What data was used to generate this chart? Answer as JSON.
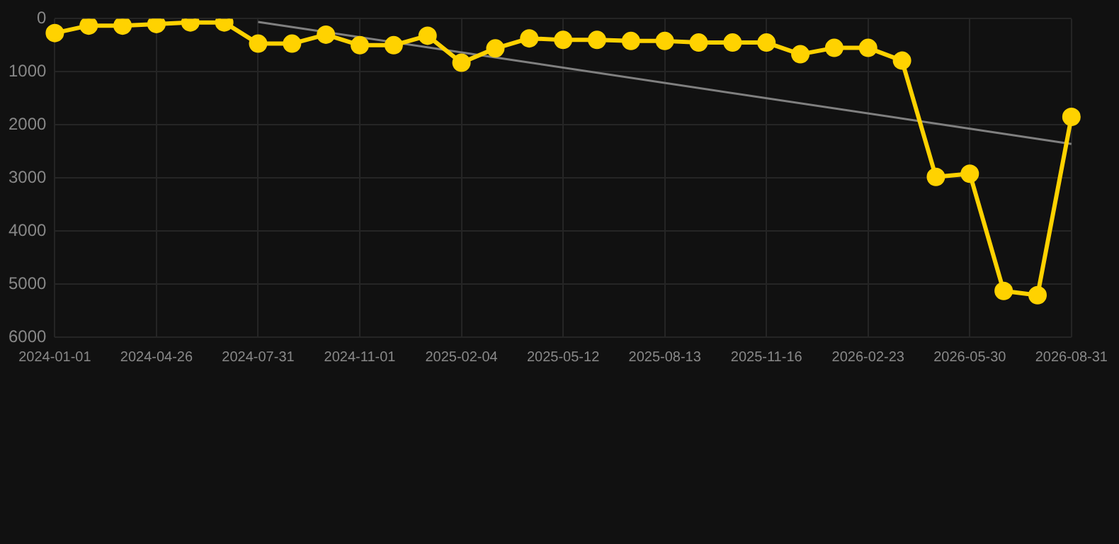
{
  "chart_data": {
    "type": "line",
    "categories": [
      "2024-01-01",
      null,
      null,
      "2024-04-26",
      null,
      null,
      "2024-07-31",
      null,
      null,
      "2024-11-01",
      null,
      null,
      "2025-02-04",
      null,
      null,
      "2025-05-12",
      null,
      null,
      "2025-08-13",
      null,
      null,
      "2025-11-16",
      null,
      null,
      "2026-02-23",
      null,
      null,
      "2026-05-30",
      null,
      null,
      "2026-08-31"
    ],
    "series": [
      {
        "color": "#ffd200",
        "marker": "circle",
        "values": [
          270,
          130,
          130,
          100,
          70,
          70,
          470,
          470,
          300,
          500,
          500,
          320,
          830,
          560,
          370,
          400,
          400,
          420,
          420,
          450,
          450,
          450,
          670,
          550,
          550,
          790,
          2980,
          2920,
          5130,
          5210,
          1850
        ]
      },
      {
        "color": "#808080",
        "marker": "none",
        "values": [
          null,
          null,
          null,
          null,
          null,
          null,
          60,
          null,
          null,
          null,
          null,
          null,
          null,
          null,
          null,
          null,
          null,
          null,
          null,
          null,
          null,
          null,
          null,
          null,
          null,
          null,
          null,
          null,
          null,
          null,
          2360
        ]
      }
    ],
    "ylim": [
      6000,
      0
    ],
    "yticks": [
      0,
      1000,
      2000,
      3000,
      4000,
      5000,
      6000
    ],
    "grid": true,
    "legend": false
  }
}
